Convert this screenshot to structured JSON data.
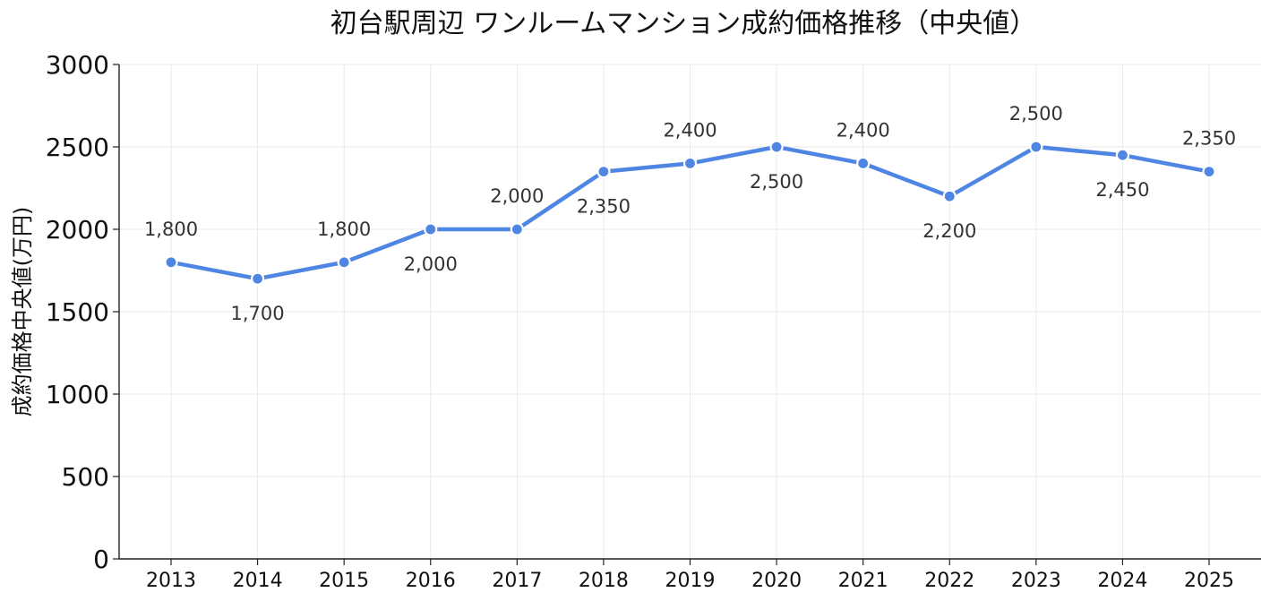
{
  "chart_data": {
    "type": "line",
    "title": "初台駅周辺 ワンルームマンション成約価格推移（中央値）",
    "xlabel": "",
    "ylabel": "成約価格中央値(万円)",
    "ylim": [
      0,
      3000
    ],
    "yticks": [
      0,
      500,
      1000,
      1500,
      2000,
      2500,
      3000
    ],
    "categories": [
      "2013",
      "2014",
      "2015",
      "2016",
      "2017",
      "2018",
      "2019",
      "2020",
      "2021",
      "2022",
      "2023",
      "2024",
      "2025"
    ],
    "series": [
      {
        "values": [
          1800,
          1700,
          1800,
          2000,
          2000,
          2350,
          2400,
          2500,
          2400,
          2200,
          2500,
          2450,
          2350
        ],
        "data_labels": [
          "1,800",
          "1,700",
          "1,800",
          "2,000",
          "2,000",
          "2,350",
          "2,400",
          "2,500",
          "2,400",
          "2,200",
          "2,500",
          "2,450",
          "2,350"
        ],
        "color": "#4f86e3"
      }
    ],
    "grid": true,
    "legend": "none"
  }
}
